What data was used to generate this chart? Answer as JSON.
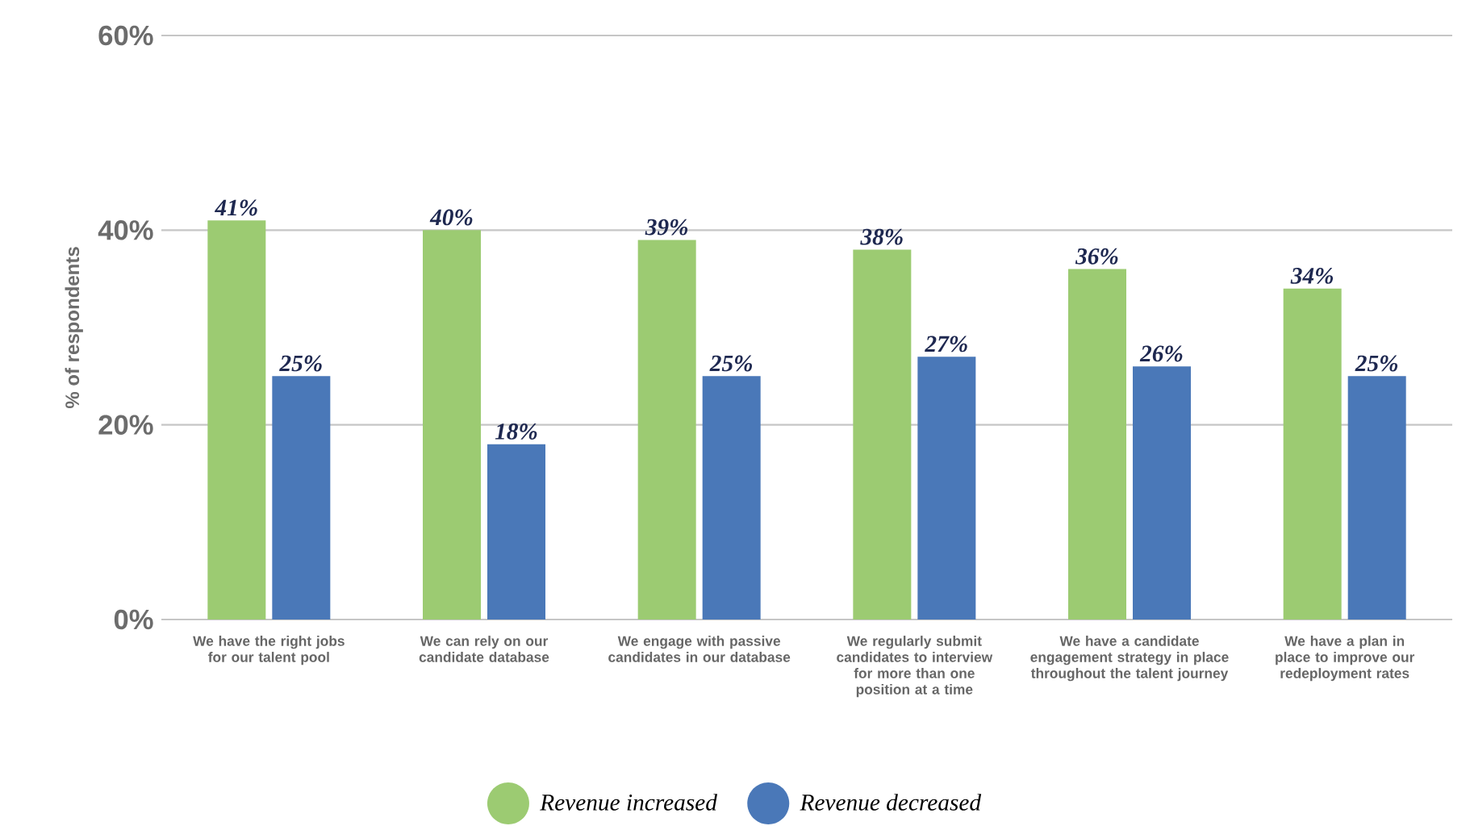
{
  "chart_data": {
    "type": "bar",
    "ylabel": "% of respondents",
    "categories": [
      "We have the right jobs for our talent pool",
      "We can rely on our candidate database",
      "We engage with passive candidates in our database",
      "We regularly submit candidates to interview for more than one position at a time",
      "We have a candidate engagement strategy in place throughout the talent journey",
      "We have a plan in place to improve our redeployment rates"
    ],
    "series": [
      {
        "name": "Revenue increased",
        "color": "#9ccb72",
        "values": [
          41,
          40,
          39,
          38,
          36,
          34
        ],
        "value_labels": [
          "41%",
          "40%",
          "39%",
          "38%",
          "36%",
          "34%"
        ]
      },
      {
        "name": "Revenue decreased",
        "color": "#4a78b8",
        "values": [
          25,
          18,
          25,
          27,
          26,
          25
        ],
        "value_labels": [
          "25%",
          "18%",
          "25%",
          "27%",
          "26%",
          "25%"
        ]
      }
    ],
    "ylim": [
      0,
      60
    ],
    "yticks": [
      {
        "value": 0,
        "label": "0%"
      },
      {
        "value": 20,
        "label": "20%"
      },
      {
        "value": 40,
        "label": "40%"
      },
      {
        "value": 60,
        "label": "60%"
      }
    ],
    "grid": "y",
    "legend": "bottom"
  }
}
